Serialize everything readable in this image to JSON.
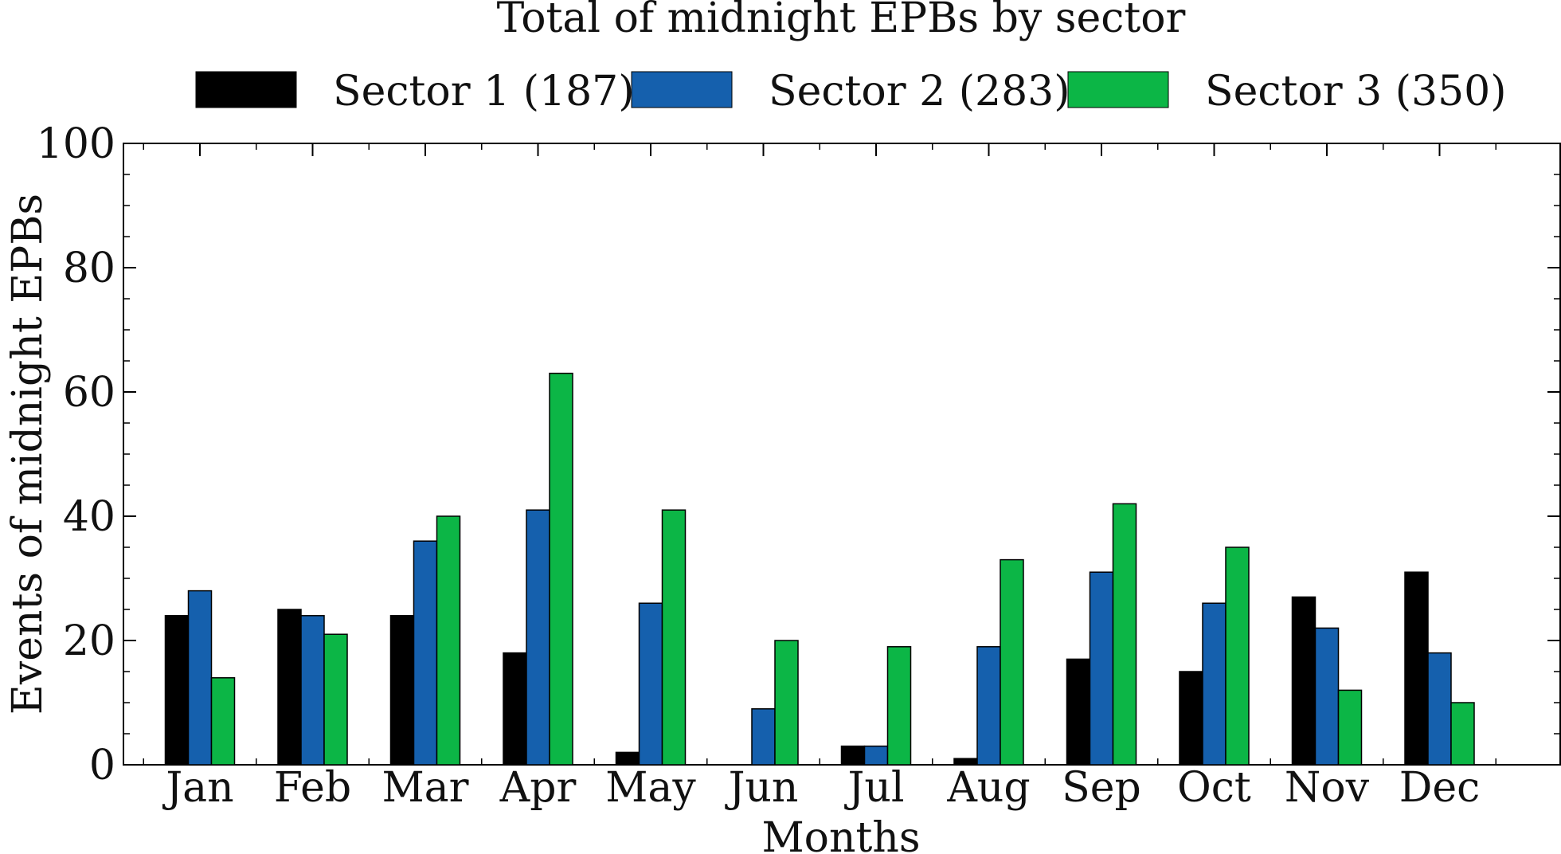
{
  "chart_data": {
    "type": "bar",
    "title": "Total of midnight EPBs by sector",
    "xlabel": "Months",
    "ylabel": "Events of midnight EPBs",
    "categories": [
      "Jan",
      "Feb",
      "Mar",
      "Apr",
      "May",
      "Jun",
      "Jul",
      "Aug",
      "Sep",
      "Oct",
      "Nov",
      "Dec"
    ],
    "series": [
      {
        "name": "Sector 1 (187)",
        "color": "#000000",
        "values": [
          24,
          25,
          24,
          18,
          2,
          0,
          3,
          1,
          17,
          15,
          27,
          31
        ]
      },
      {
        "name": "Sector 2 (283)",
        "color": "#1560ad",
        "values": [
          28,
          24,
          36,
          41,
          26,
          9,
          3,
          19,
          31,
          26,
          22,
          18
        ]
      },
      {
        "name": "Sector 3 (350)",
        "color": "#0cb646",
        "values": [
          14,
          21,
          40,
          63,
          41,
          20,
          19,
          33,
          42,
          35,
          12,
          10
        ]
      }
    ],
    "ylim": [
      0,
      100
    ],
    "yticks": [
      0,
      20,
      40,
      60,
      80,
      100
    ],
    "grid": false,
    "legend_position": "top"
  }
}
